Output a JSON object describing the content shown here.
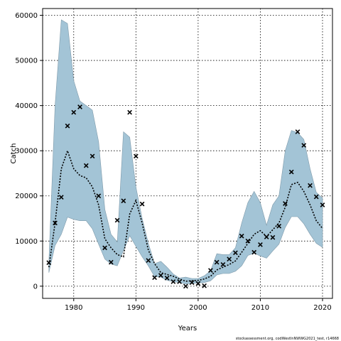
{
  "chart_data": {
    "type": "line",
    "xlabel": "Years",
    "ylabel": "Catch",
    "xlim": [
      1975,
      2021.6
    ],
    "ylim": [
      -2700,
      61500
    ],
    "xticks": [
      1980,
      1990,
      2000,
      2010,
      2020
    ],
    "yticks": [
      0,
      10000,
      20000,
      30000,
      40000,
      50000,
      60000
    ],
    "grid": true,
    "footer": "stockassessment.org, codWestInNWWG2021_test, r14668",
    "colors": {
      "band": "#a3c4d6",
      "band_edge": "#7f9aaa",
      "line": "#000000",
      "points": "#000000"
    },
    "years": [
      1976,
      1977,
      1978,
      1979,
      1980,
      1981,
      1982,
      1983,
      1984,
      1985,
      1986,
      1987,
      1988,
      1989,
      1990,
      1991,
      1992,
      1993,
      1994,
      1995,
      1996,
      1997,
      1998,
      1999,
      2000,
      2001,
      2002,
      2003,
      2004,
      2005,
      2006,
      2007,
      2008,
      2009,
      2010,
      2011,
      2012,
      2013,
      2014,
      2015,
      2016,
      2017,
      2018,
      2019,
      2020
    ],
    "estimate": [
      4200,
      14000,
      26000,
      30000,
      26000,
      24500,
      24000,
      22000,
      18000,
      10500,
      8500,
      7000,
      6500,
      16000,
      19000,
      14000,
      8000,
      5000,
      3000,
      2600,
      2200,
      1600,
      1100,
      1200,
      1300,
      1600,
      2200,
      3600,
      4200,
      4800,
      5600,
      7500,
      9500,
      11500,
      12300,
      11000,
      12500,
      14000,
      17500,
      22500,
      23000,
      21000,
      18000,
      14500,
      12800
    ],
    "upper": [
      5500,
      40000,
      59000,
      58200,
      45500,
      41000,
      40000,
      39000,
      32000,
      17000,
      11500,
      9800,
      34200,
      33000,
      22000,
      15000,
      9500,
      5000,
      5500,
      4200,
      2700,
      1800,
      2000,
      1700,
      1700,
      2300,
      3400,
      7200,
      7000,
      7000,
      8500,
      14000,
      18500,
      21000,
      18500,
      13500,
      18000,
      20000,
      30000,
      34500,
      34000,
      32500,
      26000,
      20800,
      19500
    ],
    "lower": [
      3000,
      9000,
      11500,
      15300,
      14800,
      14500,
      14500,
      12700,
      9300,
      6000,
      4900,
      4500,
      7900,
      11200,
      8800,
      6500,
      4500,
      2100,
      2000,
      1300,
      1000,
      800,
      500,
      600,
      700,
      800,
      1200,
      2500,
      2800,
      2800,
      3300,
      4500,
      6800,
      7300,
      6700,
      6200,
      7800,
      9300,
      13000,
      15400,
      15400,
      13800,
      11500,
      9500,
      8600
    ],
    "observed": [
      5200,
      14000,
      19700,
      35500,
      38500,
      39700,
      26700,
      28800,
      20000,
      8500,
      5300,
      14600,
      18900,
      38500,
      28800,
      18200,
      5700,
      1900,
      2400,
      1800,
      1000,
      1000,
      0,
      800,
      600,
      100,
      3500,
      5300,
      4800,
      6000,
      7400,
      11100,
      10000,
      7500,
      9200,
      10900,
      10800,
      13300,
      18300,
      25300,
      34200,
      31200,
      22300,
      19800,
      18000
    ]
  }
}
